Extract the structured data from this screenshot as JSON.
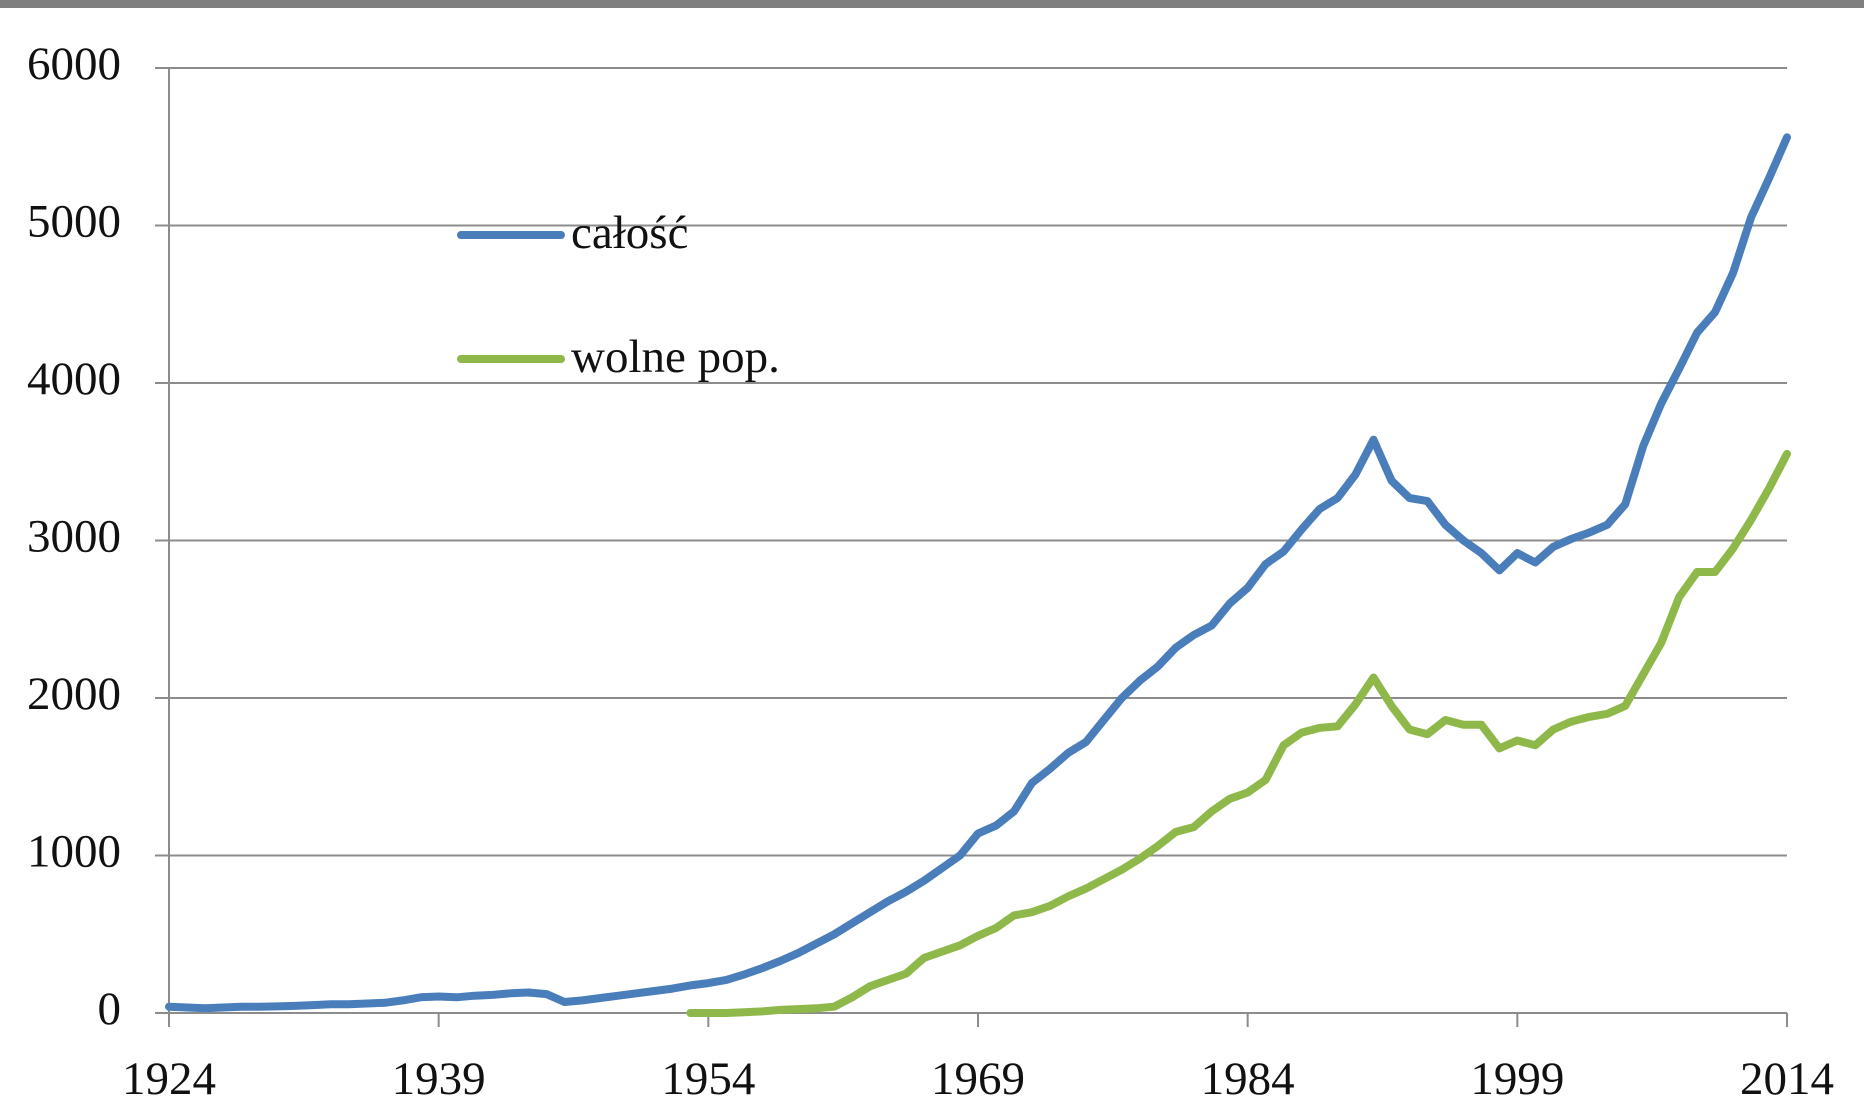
{
  "chart_data": {
    "type": "line",
    "x": [
      1924,
      1925,
      1926,
      1927,
      1928,
      1929,
      1930,
      1931,
      1932,
      1933,
      1934,
      1935,
      1936,
      1937,
      1938,
      1939,
      1940,
      1941,
      1942,
      1943,
      1944,
      1945,
      1946,
      1947,
      1948,
      1949,
      1950,
      1951,
      1952,
      1953,
      1954,
      1955,
      1956,
      1957,
      1958,
      1959,
      1960,
      1961,
      1962,
      1963,
      1964,
      1965,
      1966,
      1967,
      1968,
      1969,
      1970,
      1971,
      1972,
      1973,
      1974,
      1975,
      1976,
      1977,
      1978,
      1979,
      1980,
      1981,
      1982,
      1983,
      1984,
      1985,
      1986,
      1987,
      1988,
      1989,
      1990,
      1991,
      1992,
      1993,
      1994,
      1995,
      1996,
      1997,
      1998,
      1999,
      2000,
      2001,
      2002,
      2003,
      2004,
      2005,
      2006,
      2007,
      2008,
      2009,
      2010,
      2011,
      2012,
      2013,
      2014
    ],
    "series": [
      {
        "name": "całość",
        "color": "#4a7ebb",
        "values": [
          40,
          35,
          30,
          35,
          40,
          40,
          42,
          45,
          50,
          55,
          55,
          60,
          65,
          80,
          100,
          105,
          100,
          110,
          115,
          125,
          130,
          120,
          70,
          80,
          95,
          110,
          125,
          140,
          155,
          175,
          190,
          210,
          245,
          285,
          330,
          380,
          440,
          500,
          570,
          640,
          710,
          770,
          840,
          920,
          1000,
          1140,
          1190,
          1280,
          1460,
          1550,
          1650,
          1720,
          1860,
          2000,
          2110,
          2200,
          2320,
          2400,
          2460,
          2600,
          2700,
          2850,
          2930,
          3070,
          3200,
          3270,
          3420,
          3640,
          3380,
          3270,
          3250,
          3100,
          3000,
          2920,
          2810,
          2920,
          2860,
          2960,
          3010,
          3050,
          3100,
          3230,
          3600,
          3870,
          4090,
          4320,
          4450,
          4700,
          5050,
          5300,
          5560
        ]
      },
      {
        "name": "wolne pop.",
        "color": "#8fb84a",
        "values": [
          null,
          null,
          null,
          null,
          null,
          null,
          null,
          null,
          null,
          null,
          null,
          null,
          null,
          null,
          null,
          null,
          null,
          null,
          null,
          null,
          null,
          null,
          null,
          null,
          null,
          null,
          null,
          null,
          null,
          0,
          0,
          0,
          5,
          10,
          20,
          25,
          30,
          40,
          100,
          170,
          210,
          250,
          350,
          390,
          430,
          490,
          540,
          620,
          640,
          680,
          740,
          790,
          850,
          910,
          980,
          1060,
          1150,
          1180,
          1280,
          1360,
          1400,
          1480,
          1700,
          1780,
          1810,
          1820,
          1960,
          2130,
          1950,
          1800,
          1770,
          1860,
          1830,
          1830,
          1680,
          1730,
          1700,
          1800,
          1850,
          1880,
          1900,
          1950,
          2150,
          2350,
          2640,
          2800,
          2800,
          2950,
          3130,
          3330,
          3550
        ]
      }
    ],
    "xlim": [
      1924,
      2014
    ],
    "xticks": [
      1924,
      1939,
      1954,
      1969,
      1984,
      1999,
      2014
    ],
    "ylim": [
      0,
      6000
    ],
    "yticks": [
      0,
      1000,
      2000,
      3000,
      4000,
      5000,
      6000
    ],
    "grid": true,
    "legend": "upper left"
  }
}
